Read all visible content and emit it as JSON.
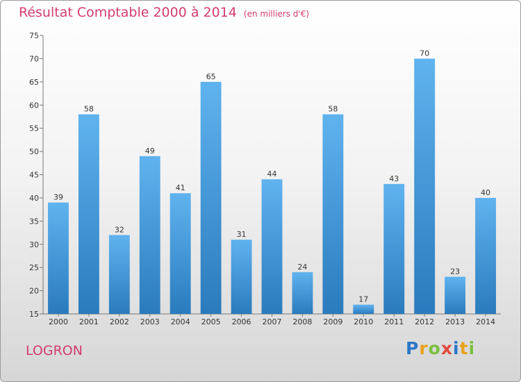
{
  "chart_data": {
    "type": "bar",
    "title": "Résultat Comptable 2000 à 2014",
    "subtitle": "(en milliers d'€)",
    "categories": [
      "2000",
      "2001",
      "2002",
      "2003",
      "2004",
      "2005",
      "2006",
      "2007",
      "2008",
      "2009",
      "2010",
      "2011",
      "2012",
      "2013",
      "2014"
    ],
    "values": [
      39,
      58,
      32,
      49,
      41,
      65,
      31,
      44,
      24,
      58,
      17,
      43,
      70,
      23,
      40
    ],
    "ylim": [
      15,
      75
    ],
    "yticks": [
      15,
      20,
      25,
      30,
      35,
      40,
      45,
      50,
      55,
      60,
      65,
      70,
      75
    ],
    "grid": false,
    "bar_color": "#3a8fd4"
  },
  "place_name": "LOGRON",
  "logo": {
    "letters": [
      "P",
      "r",
      "o",
      "x",
      "i",
      "t",
      "i"
    ],
    "colors": [
      "#2b77c7",
      "#e9a21a",
      "#7bbf3f",
      "#e04b3f",
      "#2b77c7",
      "#e9a21a",
      "#7bbf3f"
    ]
  }
}
